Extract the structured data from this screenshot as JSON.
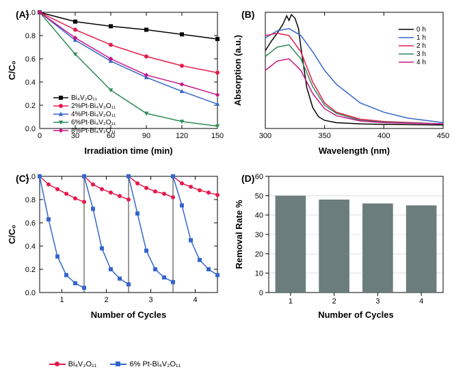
{
  "panelA": {
    "letter": "(A)",
    "type": "line",
    "xlabel": "Irradiation time (min)",
    "ylabel": "C/C₀",
    "xlim": [
      0,
      150
    ],
    "ylim": [
      0,
      1.0
    ],
    "xticks": [
      0,
      30,
      60,
      90,
      120,
      150
    ],
    "yticks": [
      0.0,
      0.2,
      0.4,
      0.6,
      0.8,
      1.0
    ],
    "series": [
      {
        "name": "Bi₄V₂O₁₁",
        "color": "#000000",
        "marker": "square",
        "x": [
          0,
          30,
          60,
          90,
          120,
          150
        ],
        "y": [
          1.0,
          0.92,
          0.88,
          0.85,
          0.81,
          0.77
        ]
      },
      {
        "name": "2%Pt-Bi₄V₂O₁₁",
        "color": "#e6194b",
        "marker": "circle",
        "x": [
          0,
          30,
          60,
          90,
          120,
          150
        ],
        "y": [
          1.0,
          0.85,
          0.72,
          0.62,
          0.54,
          0.48
        ]
      },
      {
        "name": "4%Pt-Bi₄V₂O₁₁",
        "color": "#3366cc",
        "marker": "triangle",
        "x": [
          0,
          30,
          60,
          90,
          120,
          150
        ],
        "y": [
          1.0,
          0.76,
          0.58,
          0.44,
          0.32,
          0.21
        ]
      },
      {
        "name": "6%Pt-Bi₄V₂O₁₁",
        "color": "#2e8b57",
        "marker": "invtriangle",
        "x": [
          0,
          30,
          60,
          90,
          120,
          150
        ],
        "y": [
          1.0,
          0.64,
          0.33,
          0.13,
          0.06,
          0.02
        ]
      },
      {
        "name": "8%Pt-Bi₄V₂O₁₁",
        "color": "#c71585",
        "marker": "diamond",
        "x": [
          0,
          30,
          60,
          90,
          120,
          150
        ],
        "y": [
          1.0,
          0.78,
          0.6,
          0.46,
          0.38,
          0.29
        ]
      }
    ],
    "label_fontsize": 13,
    "tick_fontsize": 11,
    "line_width": 1.5,
    "marker_size": 5,
    "background": "#ffffff"
  },
  "panelB": {
    "letter": "(B)",
    "type": "line",
    "xlabel": "Wavelength (nm)",
    "ylabel": "Absorption (a.u.)",
    "xlim": [
      300,
      450
    ],
    "xticks": [
      300,
      350,
      400,
      450
    ],
    "ylim": [
      0,
      1
    ],
    "series": [
      {
        "name": "0 h",
        "color": "#000000",
        "x": [
          300,
          305,
          310,
          315,
          318,
          320,
          322,
          325,
          328,
          330,
          335,
          340,
          345,
          350,
          360,
          380,
          400,
          450
        ],
        "y": [
          0.67,
          0.75,
          0.82,
          0.9,
          0.97,
          0.93,
          0.98,
          0.95,
          0.86,
          0.7,
          0.35,
          0.18,
          0.1,
          0.07,
          0.05,
          0.04,
          0.035,
          0.03
        ]
      },
      {
        "name": "1 h",
        "color": "#3366cc",
        "x": [
          300,
          310,
          320,
          330,
          340,
          350,
          360,
          380,
          400,
          420,
          450
        ],
        "y": [
          0.78,
          0.84,
          0.86,
          0.8,
          0.66,
          0.5,
          0.38,
          0.22,
          0.14,
          0.09,
          0.05
        ]
      },
      {
        "name": "2 h",
        "color": "#e6194b",
        "x": [
          300,
          310,
          320,
          330,
          340,
          350,
          360,
          380,
          400,
          450
        ],
        "y": [
          0.8,
          0.82,
          0.8,
          0.66,
          0.4,
          0.22,
          0.14,
          0.08,
          0.06,
          0.04
        ]
      },
      {
        "name": "3 h",
        "color": "#2e8b57",
        "x": [
          300,
          310,
          320,
          330,
          340,
          350,
          360,
          380,
          400,
          450
        ],
        "y": [
          0.62,
          0.7,
          0.72,
          0.6,
          0.36,
          0.2,
          0.13,
          0.07,
          0.055,
          0.04
        ]
      },
      {
        "name": "4 h",
        "color": "#c71585",
        "x": [
          300,
          310,
          320,
          330,
          340,
          350,
          360,
          380,
          400,
          450
        ],
        "y": [
          0.5,
          0.58,
          0.6,
          0.5,
          0.3,
          0.17,
          0.11,
          0.065,
          0.05,
          0.04
        ]
      }
    ],
    "label_fontsize": 13,
    "line_width": 1.5,
    "background": "#ffffff"
  },
  "panelC": {
    "letter": "(C)",
    "type": "line",
    "xlabel": "Number of Cycles",
    "ylabel": "C/C₀",
    "xlim": [
      0.5,
      4.5
    ],
    "ylim": [
      0,
      1.0
    ],
    "xticks": [
      1,
      2,
      3,
      4
    ],
    "yticks": [
      0.0,
      0.2,
      0.4,
      0.6,
      0.8,
      1.0
    ],
    "cycle_dividers": [
      1.5,
      2.5,
      3.5
    ],
    "series": [
      {
        "name": "Bi₄V₂O₁₁",
        "color": "#e6194b",
        "marker": "circle",
        "x": [
          0.5,
          0.7,
          0.9,
          1.1,
          1.3,
          1.5,
          1.5,
          1.7,
          1.9,
          2.1,
          2.3,
          2.5,
          2.5,
          2.7,
          2.9,
          3.1,
          3.3,
          3.5,
          3.5,
          3.7,
          3.9,
          4.1,
          4.3,
          4.5
        ],
        "y": [
          1.0,
          0.93,
          0.89,
          0.85,
          0.81,
          0.78,
          1.0,
          0.93,
          0.89,
          0.86,
          0.83,
          0.8,
          1.0,
          0.94,
          0.9,
          0.87,
          0.85,
          0.82,
          1.0,
          0.94,
          0.91,
          0.88,
          0.86,
          0.84
        ],
        "breaks": [
          5,
          11,
          17
        ]
      },
      {
        "name": "6% Pt-Bi₄V₂O₁₁",
        "color": "#3366cc",
        "marker": "square",
        "x": [
          0.5,
          0.7,
          0.9,
          1.1,
          1.3,
          1.5,
          1.5,
          1.7,
          1.9,
          2.1,
          2.3,
          2.5,
          2.5,
          2.7,
          2.9,
          3.1,
          3.3,
          3.5,
          3.5,
          3.7,
          3.9,
          4.1,
          4.3,
          4.5
        ],
        "y": [
          1.0,
          0.63,
          0.31,
          0.15,
          0.08,
          0.04,
          1.0,
          0.72,
          0.38,
          0.2,
          0.12,
          0.07,
          1.0,
          0.68,
          0.36,
          0.2,
          0.13,
          0.09,
          1.0,
          0.75,
          0.45,
          0.28,
          0.2,
          0.15
        ],
        "breaks": [
          5,
          11,
          17
        ]
      }
    ],
    "label_fontsize": 13,
    "line_width": 1.5,
    "marker_size": 5,
    "background": "#ffffff"
  },
  "panelD": {
    "letter": "(D)",
    "type": "bar",
    "xlabel": "Number of Cycles",
    "ylabel": "Removal Rate %",
    "xlim": [
      0.5,
      4.5
    ],
    "ylim": [
      0,
      60
    ],
    "xticks": [
      1,
      2,
      3,
      4
    ],
    "yticks": [
      0,
      10,
      20,
      30,
      40,
      50,
      60
    ],
    "categories": [
      1,
      2,
      3,
      4
    ],
    "values": [
      50,
      48,
      46,
      45
    ],
    "bar_color": "#6b7d7d",
    "bar_width": 0.7,
    "grid_color": "#cccccc",
    "label_fontsize": 13,
    "background": "#ffffff"
  },
  "bottomLegend": {
    "items": [
      {
        "name": "Bi₄V₂O₁₁",
        "color": "#e6194b",
        "marker": "circle"
      },
      {
        "name": "6% Pt-Bi₄V₂O₁₁",
        "color": "#3366cc",
        "marker": "square"
      }
    ]
  }
}
